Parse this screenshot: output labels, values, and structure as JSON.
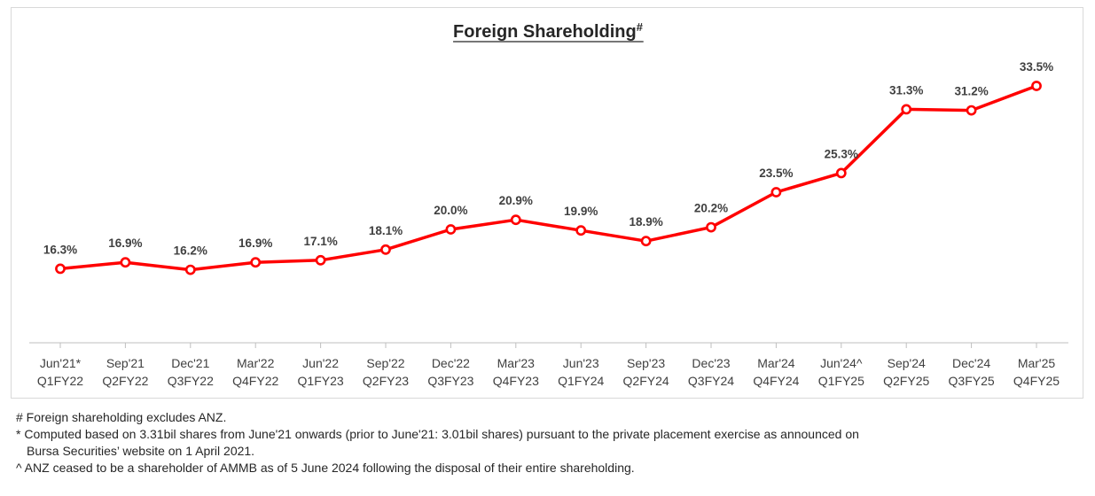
{
  "chart_data": {
    "type": "line",
    "title": "Foreign Shareholding",
    "title_superscript": "#",
    "categories": [
      [
        "Jun'21*",
        "Q1FY22"
      ],
      [
        "Sep'21",
        "Q2FY22"
      ],
      [
        "Dec'21",
        "Q3FY22"
      ],
      [
        "Mar'22",
        "Q4FY22"
      ],
      [
        "Jun'22",
        "Q1FY23"
      ],
      [
        "Sep'22",
        "Q2FY23"
      ],
      [
        "Dec'22",
        "Q3FY23"
      ],
      [
        "Mar'23",
        "Q4FY23"
      ],
      [
        "Jun'23",
        "Q1FY24"
      ],
      [
        "Sep'23",
        "Q2FY24"
      ],
      [
        "Dec'23",
        "Q3FY24"
      ],
      [
        "Mar'24",
        "Q4FY24"
      ],
      [
        "Jun'24^",
        "Q1FY25"
      ],
      [
        "Sep'24",
        "Q2FY25"
      ],
      [
        "Dec'24",
        "Q3FY25"
      ],
      [
        "Mar'25",
        "Q4FY25"
      ]
    ],
    "values": [
      16.3,
      16.9,
      16.2,
      16.9,
      17.1,
      18.1,
      20.0,
      20.9,
      19.9,
      18.9,
      20.2,
      23.5,
      25.3,
      31.3,
      31.2,
      33.5
    ],
    "data_labels": [
      "16.3%",
      "16.9%",
      "16.2%",
      "16.9%",
      "17.1%",
      "18.1%",
      "20.0%",
      "20.9%",
      "19.9%",
      "18.9%",
      "20.2%",
      "23.5%",
      "25.3%",
      "31.3%",
      "31.2%",
      "33.5%"
    ],
    "ylim": [
      0,
      40
    ],
    "grid": false,
    "legend": "none",
    "line_color": "#ff0000",
    "marker_fill": "#ffffff"
  },
  "footnotes": {
    "line1": "# Foreign shareholding excludes ANZ.",
    "line2": "* Computed based on 3.31bil shares from June'21 onwards (prior to June'21: 3.01bil shares) pursuant to the private placement exercise as announced on",
    "line3": "Bursa Securities’ website on 1 April 2021.",
    "line4": "^ ANZ ceased to be a shareholder of AMMB as of 5 June 2024 following the disposal of their entire shareholding."
  }
}
